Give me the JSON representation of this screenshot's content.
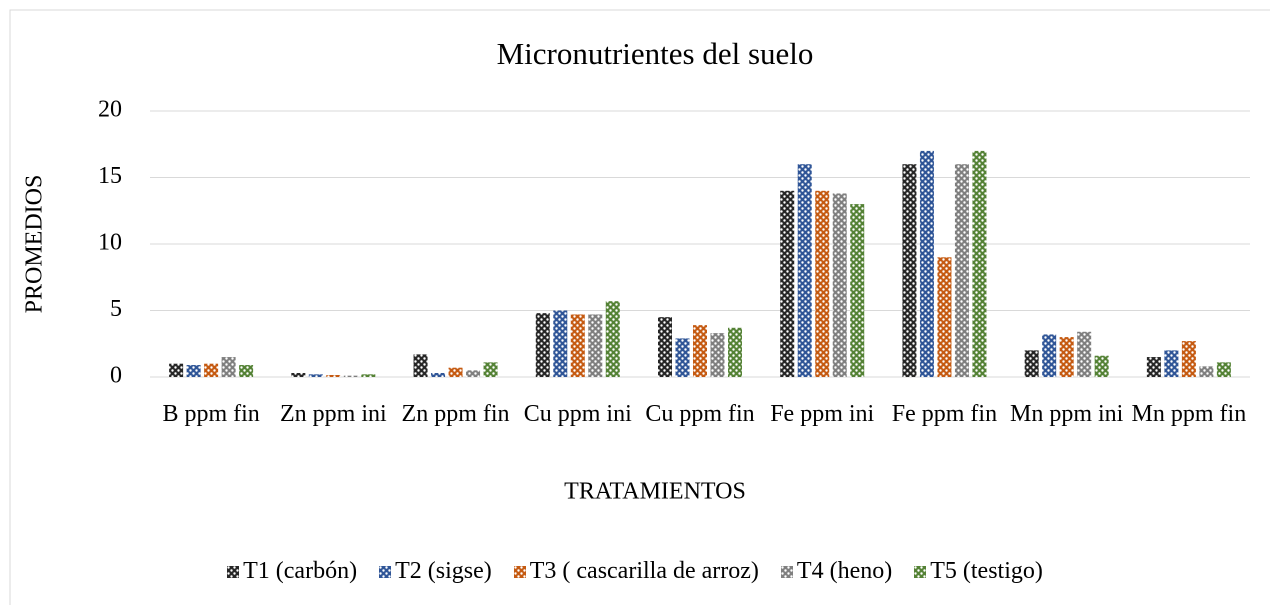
{
  "chart_data": {
    "type": "bar",
    "title": "Micronutrientes del suelo",
    "xlabel": "TRATAMIENTOS",
    "ylabel": "PROMEDIOS",
    "categories": [
      "B ppm fin",
      "Zn ppm ini",
      "Zn ppm fin",
      "Cu ppm ini",
      "Cu ppm fin",
      "Fe ppm ini",
      "Fe ppm fin",
      "Mn ppm ini",
      "Mn ppm fin"
    ],
    "series": [
      {
        "name": "T1 (carbón)",
        "color": "#262626",
        "values": [
          1.0,
          0.3,
          1.7,
          4.8,
          4.5,
          14,
          16,
          2.0,
          1.5
        ]
      },
      {
        "name": "T2 (sigse)",
        "color": "#2f5597",
        "values": [
          0.9,
          0.2,
          0.3,
          5.0,
          2.9,
          16,
          17,
          3.2,
          2.0
        ]
      },
      {
        "name": "T3 ( cascarilla de arroz)",
        "color": "#c55a11",
        "values": [
          1.0,
          0.15,
          0.7,
          4.7,
          3.9,
          14,
          9,
          3.0,
          2.7
        ]
      },
      {
        "name": "T4 (heno)",
        "color": "#7f7f7f",
        "values": [
          1.5,
          0.1,
          0.5,
          4.7,
          3.3,
          13.8,
          16,
          3.4,
          0.8
        ]
      },
      {
        "name": "T5 (testigo)",
        "color": "#548235",
        "values": [
          0.9,
          0.2,
          1.1,
          5.7,
          3.7,
          13,
          17,
          1.6,
          1.1
        ]
      }
    ],
    "ylim": [
      0,
      20
    ],
    "yticks": [
      0,
      5,
      10,
      15,
      20
    ],
    "grid": true,
    "legend": "bottom"
  }
}
